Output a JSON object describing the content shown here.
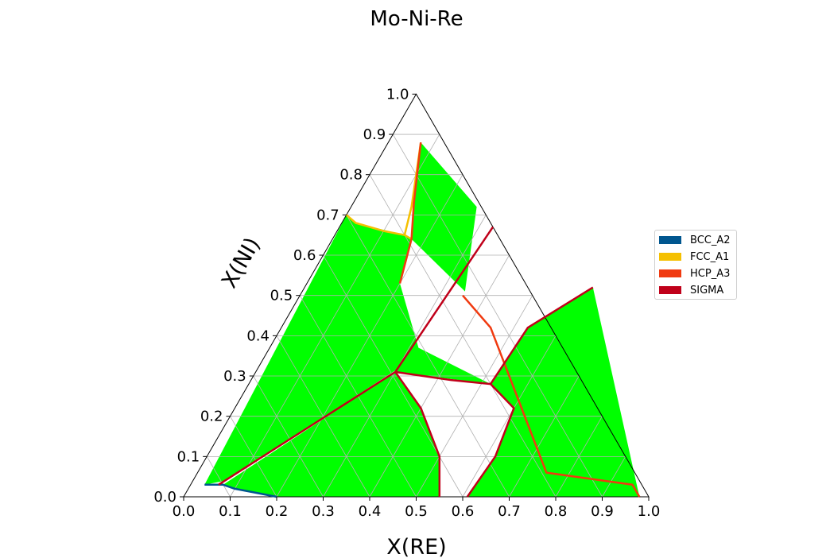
{
  "chart_data": {
    "type": "ternary",
    "title": "Mo-Ni-Re",
    "xlabel": "X(RE)",
    "ylabel": "X(NI)",
    "xticks": [
      "0.0",
      "0.1",
      "0.2",
      "0.3",
      "0.4",
      "0.5",
      "0.6",
      "0.7",
      "0.8",
      "0.9",
      "1.0"
    ],
    "yticks": [
      "0.0",
      "0.1",
      "0.2",
      "0.3",
      "0.4",
      "0.5",
      "0.6",
      "0.7",
      "0.8",
      "0.9",
      "1.0"
    ],
    "grid": true,
    "legend_position": "right",
    "legend": [
      {
        "name": "BCC_A2",
        "color": "#00568f"
      },
      {
        "name": "FCC_A1",
        "color": "#f5c000"
      },
      {
        "name": "HCP_A3",
        "color": "#f03a10"
      },
      {
        "name": "SIGMA",
        "color": "#c0001a"
      }
    ],
    "tie_line_color": "#00ff00",
    "phase_boundaries": [
      {
        "phase": "BCC_A2",
        "points": [
          [
            0.03,
            0.03
          ],
          [
            0.07,
            0.03
          ],
          [
            0.1,
            0.02
          ],
          [
            0.15,
            0.01
          ],
          [
            0.2,
            0.0
          ]
        ]
      },
      {
        "phase": "FCC_A1",
        "points": [
          [
            0.0,
            0.7
          ],
          [
            0.03,
            0.68
          ],
          [
            0.1,
            0.66
          ],
          [
            0.15,
            0.65
          ],
          [
            0.17,
            0.64
          ]
        ]
      },
      {
        "phase": "FCC_A1",
        "points": [
          [
            0.15,
            0.65
          ],
          [
            0.13,
            0.72
          ],
          [
            0.1,
            0.8
          ],
          [
            0.07,
            0.88
          ]
        ]
      },
      {
        "phase": "HCP_A3",
        "points": [
          [
            0.07,
            0.88
          ],
          [
            0.13,
            0.73
          ],
          [
            0.17,
            0.64
          ],
          [
            0.2,
            0.53
          ]
        ]
      },
      {
        "phase": "HCP_A3",
        "points": [
          [
            0.35,
            0.5
          ],
          [
            0.45,
            0.42
          ],
          [
            0.55,
            0.3
          ],
          [
            0.65,
            0.18
          ],
          [
            0.75,
            0.06
          ],
          [
            0.95,
            0.03
          ],
          [
            0.98,
            0.0
          ]
        ]
      },
      {
        "phase": "SIGMA",
        "points": [
          [
            0.06,
            0.03
          ],
          [
            0.3,
            0.31
          ],
          [
            0.33,
            0.67
          ]
        ]
      },
      {
        "phase": "SIGMA",
        "points": [
          [
            0.3,
            0.31
          ],
          [
            0.43,
            0.29
          ],
          [
            0.52,
            0.28
          ]
        ]
      },
      {
        "phase": "SIGMA",
        "points": [
          [
            0.52,
            0.28
          ],
          [
            0.6,
            0.22
          ],
          [
            0.62,
            0.1
          ],
          [
            0.61,
            0.0
          ]
        ]
      },
      {
        "phase": "SIGMA",
        "points": [
          [
            0.3,
            0.31
          ],
          [
            0.4,
            0.22
          ],
          [
            0.5,
            0.1
          ],
          [
            0.55,
            0.0
          ]
        ]
      },
      {
        "phase": "SIGMA",
        "points": [
          [
            0.52,
            0.28
          ],
          [
            0.53,
            0.42
          ],
          [
            0.62,
            0.52
          ]
        ]
      }
    ]
  }
}
